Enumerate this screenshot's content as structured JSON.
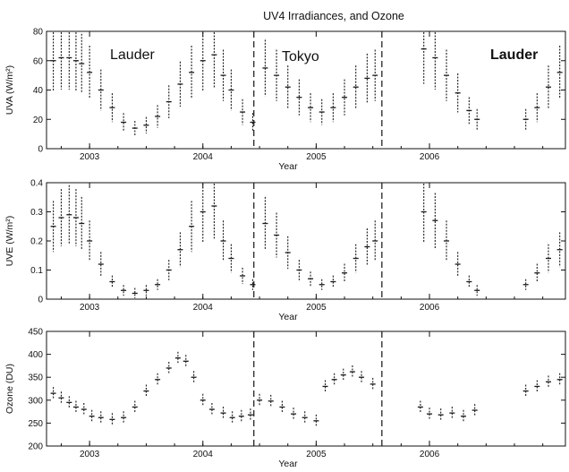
{
  "figure": {
    "title": "UV4 Irradiances, and Ozone"
  },
  "colors": {
    "axis": "#111111",
    "data": "#1a1a1a",
    "divider": "#111111",
    "background": "#ffffff"
  },
  "chart_data": [
    {
      "type": "scatter",
      "panel": "UVA",
      "ylabel": "UVA (W/m²)",
      "xlabel": "Year",
      "xlim": [
        2002.62,
        2007.2
      ],
      "ylim": [
        0,
        80
      ],
      "yticks": [
        "0",
        "20",
        "40",
        "60",
        "80"
      ],
      "xticks": [
        "2003",
        "2004",
        "2005",
        "2006"
      ],
      "x_tick_values": [
        2003,
        2004,
        2005,
        2006
      ],
      "sites": [
        "Lauder",
        "Tokyo",
        "Lauder"
      ],
      "site_boundaries": [
        2004.45,
        2005.58
      ],
      "series": [
        {
          "x": [
            2002.68,
            2002.75,
            2002.82,
            2002.88,
            2002.93,
            2003.0,
            2003.1,
            2003.2,
            2003.3,
            2003.4,
            2003.5,
            2003.6,
            2003.7,
            2003.8,
            2003.9,
            2004.0,
            2004.1,
            2004.18,
            2004.25,
            2004.35,
            2004.44,
            2004.55,
            2004.65,
            2004.75,
            2004.85,
            2004.95,
            2005.05,
            2005.15,
            2005.25,
            2005.35,
            2005.45,
            2005.52,
            2005.95,
            2006.05,
            2006.15,
            2006.25,
            2006.35,
            2006.42,
            2006.85,
            2006.95,
            2007.05,
            2007.15
          ],
          "y": [
            60,
            62,
            62,
            60,
            58,
            52,
            40,
            28,
            18,
            14,
            16,
            22,
            32,
            44,
            52,
            60,
            64,
            50,
            40,
            25,
            18,
            55,
            50,
            42,
            35,
            28,
            25,
            28,
            35,
            42,
            48,
            50,
            68,
            62,
            50,
            38,
            26,
            20,
            20,
            28,
            42,
            52
          ]
        }
      ]
    },
    {
      "type": "scatter",
      "panel": "UVE",
      "ylabel": "UVE (W/m²)",
      "xlabel": "Year",
      "xlim": [
        2002.62,
        2007.2
      ],
      "ylim": [
        0,
        0.4
      ],
      "yticks": [
        "0",
        "0.1",
        "0.2",
        "0.3",
        "0.4"
      ],
      "xticks": [
        "2003",
        "2004",
        "2005",
        "2006"
      ],
      "x_tick_values": [
        2003,
        2004,
        2005,
        2006
      ],
      "site_boundaries": [
        2004.45,
        2005.58
      ],
      "series": [
        {
          "x": [
            2002.68,
            2002.75,
            2002.82,
            2002.88,
            2002.93,
            2003.0,
            2003.1,
            2003.2,
            2003.3,
            2003.4,
            2003.5,
            2003.6,
            2003.7,
            2003.8,
            2003.9,
            2004.0,
            2004.1,
            2004.18,
            2004.25,
            2004.35,
            2004.44,
            2004.55,
            2004.65,
            2004.75,
            2004.85,
            2004.95,
            2005.05,
            2005.15,
            2005.25,
            2005.35,
            2005.45,
            2005.52,
            2005.95,
            2006.05,
            2006.15,
            2006.25,
            2006.35,
            2006.42,
            2006.85,
            2006.95,
            2007.05,
            2007.15
          ],
          "y": [
            0.25,
            0.28,
            0.29,
            0.28,
            0.26,
            0.2,
            0.12,
            0.06,
            0.03,
            0.02,
            0.03,
            0.05,
            0.1,
            0.17,
            0.25,
            0.3,
            0.32,
            0.2,
            0.14,
            0.08,
            0.05,
            0.26,
            0.22,
            0.16,
            0.1,
            0.07,
            0.05,
            0.06,
            0.09,
            0.14,
            0.18,
            0.2,
            0.3,
            0.27,
            0.2,
            0.12,
            0.06,
            0.03,
            0.05,
            0.09,
            0.14,
            0.17
          ]
        }
      ]
    },
    {
      "type": "scatter",
      "panel": "Ozone",
      "ylabel": "Ozone (DU)",
      "xlabel": "Year",
      "xlim": [
        2002.62,
        2007.2
      ],
      "ylim": [
        200,
        450
      ],
      "yticks": [
        "200",
        "250",
        "300",
        "350",
        "400",
        "450"
      ],
      "xticks": [
        "2003",
        "2004",
        "2005",
        "2006"
      ],
      "x_tick_values": [
        2003,
        2004,
        2005,
        2006
      ],
      "site_boundaries": [
        2004.45,
        2005.58
      ],
      "series": [
        {
          "x": [
            2002.68,
            2002.75,
            2002.82,
            2002.88,
            2002.95,
            2003.02,
            2003.1,
            2003.2,
            2003.3,
            2003.4,
            2003.5,
            2003.6,
            2003.7,
            2003.78,
            2003.85,
            2003.92,
            2004.0,
            2004.08,
            2004.18,
            2004.26,
            2004.34,
            2004.42,
            2004.5,
            2004.6,
            2004.7,
            2004.8,
            2004.9,
            2005.0,
            2005.08,
            2005.16,
            2005.24,
            2005.32,
            2005.4,
            2005.5,
            2005.92,
            2006.0,
            2006.1,
            2006.2,
            2006.3,
            2006.4,
            2006.85,
            2006.95,
            2007.05,
            2007.15
          ],
          "y": [
            315,
            305,
            295,
            285,
            280,
            265,
            262,
            258,
            262,
            285,
            320,
            345,
            370,
            392,
            385,
            350,
            300,
            280,
            272,
            262,
            265,
            268,
            300,
            298,
            285,
            270,
            262,
            255,
            330,
            345,
            355,
            362,
            350,
            335,
            285,
            270,
            268,
            272,
            265,
            278,
            320,
            330,
            340,
            345
          ]
        }
      ]
    }
  ]
}
